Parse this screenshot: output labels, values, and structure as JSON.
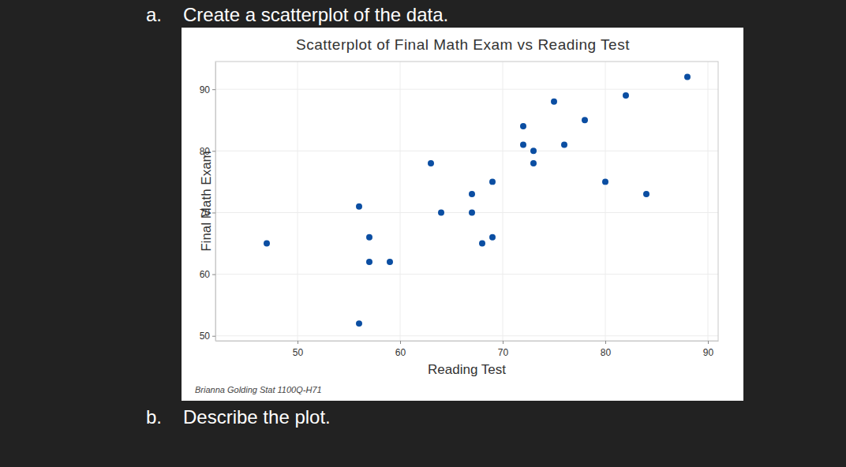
{
  "page": {
    "items": [
      {
        "label": "a.",
        "text": "Create a scatterplot of the data."
      },
      {
        "label": "b.",
        "text": "Describe the plot."
      }
    ]
  },
  "chart_data": {
    "type": "scatter",
    "title": "Scatterplot of Final Math Exam vs Reading Test",
    "x_label": "Reading Test",
    "y_label": "Final Math Exam",
    "caption": "Brianna Golding Stat 1100Q-H71",
    "x": [
      47,
      56,
      56,
      57,
      57,
      59,
      63,
      64,
      67,
      67,
      69,
      69,
      68,
      72,
      72,
      73,
      73,
      75,
      76,
      78,
      80,
      82,
      84,
      88
    ],
    "values": [
      65,
      71,
      52,
      66,
      62,
      62,
      78,
      70,
      73,
      70,
      75,
      66,
      65,
      84,
      81,
      80,
      78,
      88,
      81,
      85,
      75,
      89,
      73,
      92
    ],
    "color": "#0b4ea2",
    "marker": "circle",
    "xlim": [
      42,
      91
    ],
    "ylim": [
      49.2,
      94.5
    ],
    "xticks": [
      50,
      60,
      70,
      80,
      90
    ],
    "yticks": [
      50,
      60,
      70,
      80,
      90
    ],
    "grid": true
  }
}
